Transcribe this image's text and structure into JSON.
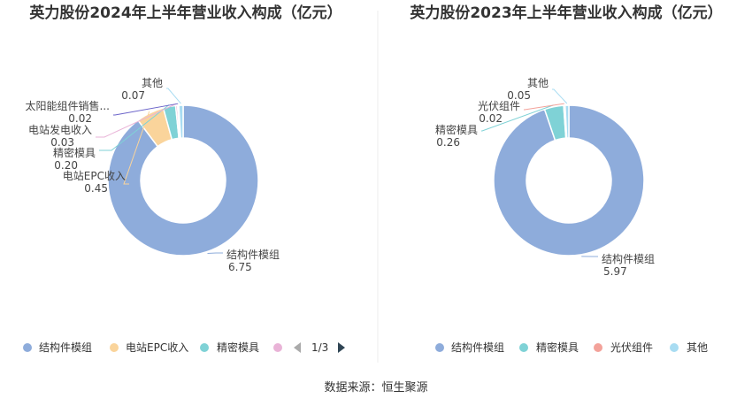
{
  "source": "数据来源：恒生聚源",
  "chart_data": [
    {
      "type": "pie",
      "title": "英力股份2024年上半年营业收入构成（亿元）",
      "categories": [
        "结构件模组",
        "电站EPC收入",
        "精密模具",
        "电站发电收入",
        "太阳能组件销售...",
        "其他"
      ],
      "values": [
        6.75,
        0.45,
        0.2,
        0.03,
        0.02,
        0.07
      ],
      "value_labels": [
        "6.75",
        "0.45",
        "0.20",
        "0.03",
        "0.02",
        "0.07"
      ],
      "colors": [
        "#8eacdb",
        "#fad49b",
        "#7fd2d6",
        "#e9b3d7",
        "#6a63c9",
        "#a8dcf2"
      ],
      "legend": {
        "position": "bottom",
        "items": [
          "结构件模组",
          "电站EPC收入",
          "精密模具",
          ""
        ],
        "page": "1/3"
      }
    },
    {
      "type": "pie",
      "title": "英力股份2023年上半年营业收入构成（亿元）",
      "categories": [
        "结构件模组",
        "精密模具",
        "光伏组件",
        "其他"
      ],
      "values": [
        5.97,
        0.26,
        0.02,
        0.05
      ],
      "value_labels": [
        "5.97",
        "0.26",
        "0.02",
        "0.05"
      ],
      "colors": [
        "#8eacdb",
        "#7fd2d6",
        "#f3a29a",
        "#a8dcf2"
      ],
      "legend": {
        "position": "bottom",
        "items": [
          "结构件模组",
          "精密模具",
          "光伏组件",
          "其他"
        ]
      }
    }
  ]
}
